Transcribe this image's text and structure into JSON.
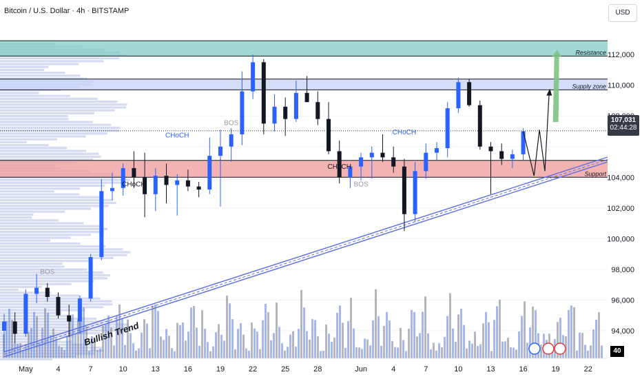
{
  "header": {
    "title": "Bitcoin / U.S. Dollar · 4h · BITSTAMP",
    "currency": "USD"
  },
  "last_price": {
    "price": "107,031",
    "countdown": "02:44:28"
  },
  "overlay_logo": "40",
  "colors": {
    "bull": "#2962ff",
    "bear": "#131722",
    "resistance": "#80cbc4",
    "supply": "#c5d3f5",
    "support": "#ef9a9a",
    "trendline": "#5b6ee1",
    "projection_arrow": "#7dc383",
    "volume": "#5d7fd8",
    "volume_dark": "#787b86"
  },
  "chart_data": {
    "type": "candlestick",
    "x_tick_labels": [
      "May",
      "4",
      "7",
      "10",
      "13",
      "16",
      "19",
      "22",
      "25",
      "28",
      "Jun",
      "4",
      "7",
      "10",
      "13",
      "16",
      "19",
      "22"
    ],
    "y_ticks": [
      94000,
      96000,
      98000,
      100000,
      102000,
      104000,
      106000,
      108000,
      110000,
      112000
    ],
    "y_tick_labels": [
      "94,000",
      "96,000",
      "98,000",
      "100,000",
      "102,000",
      "104,000",
      "",
      "108,000",
      "110,000",
      "112,000"
    ],
    "ylim": [
      92200,
      113400
    ],
    "zones": [
      {
        "name": "resistance",
        "label": "Resistance",
        "from": 111900,
        "to": 112900
      },
      {
        "name": "supply",
        "label": "Supply zone",
        "from": 109700,
        "to": 110400
      },
      {
        "name": "support",
        "label": "Support",
        "from": 104000,
        "to": 105100
      }
    ],
    "annotations": [
      {
        "text": "BOS",
        "date": "May 3",
        "price": 97700,
        "color": "#9598a1"
      },
      {
        "text": "CHoCH",
        "date": "May 11",
        "price": 103400,
        "color": "#131722"
      },
      {
        "text": "CHoCH",
        "date": "May 15",
        "price": 106600,
        "color": "#2962ff"
      },
      {
        "text": "BOS",
        "date": "May 20",
        "price": 107400,
        "color": "#9598a1"
      },
      {
        "text": "CHoCH",
        "date": "May 30",
        "price": 104550,
        "color": "#131722"
      },
      {
        "text": "BOS",
        "date": "Jun 1",
        "price": 103400,
        "color": "#9598a1"
      },
      {
        "text": "CHoCH",
        "date": "Jun 5",
        "price": 106800,
        "color": "#2962ff"
      },
      {
        "text": "Bullish Trend",
        "date": "May 9",
        "price": 93600,
        "color": "#131722"
      }
    ],
    "dotted_last_price": 107031,
    "trendlines": [
      {
        "name": "bullish-trend",
        "from": {
          "date": "Apr 29",
          "price": 92300
        },
        "to": {
          "date": "Jun 22",
          "price": 105000
        }
      }
    ],
    "candles": [
      {
        "d": "Apr 29",
        "o": 94000,
        "h": 95100,
        "l": 92600,
        "c": 94600
      },
      {
        "d": "Apr 30",
        "o": 94600,
        "h": 95200,
        "l": 93200,
        "c": 93800
      },
      {
        "d": "May 1",
        "o": 93800,
        "h": 96700,
        "l": 93600,
        "c": 96400
      },
      {
        "d": "May 2",
        "o": 96400,
        "h": 97700,
        "l": 95800,
        "c": 96800
      },
      {
        "d": "May 3",
        "o": 96800,
        "h": 97100,
        "l": 95900,
        "c": 96200
      },
      {
        "d": "May 4",
        "o": 96200,
        "h": 96500,
        "l": 94800,
        "c": 95000
      },
      {
        "d": "May 5",
        "o": 95000,
        "h": 95700,
        "l": 93600,
        "c": 94600
      },
      {
        "d": "May 6",
        "o": 94600,
        "h": 96300,
        "l": 93800,
        "c": 96100
      },
      {
        "d": "May 7",
        "o": 96100,
        "h": 99000,
        "l": 95900,
        "c": 98800
      },
      {
        "d": "May 8",
        "o": 98800,
        "h": 103900,
        "l": 98600,
        "c": 103100
      },
      {
        "d": "May 9",
        "o": 103100,
        "h": 104300,
        "l": 102500,
        "c": 103300
      },
      {
        "d": "May 10",
        "o": 103300,
        "h": 104900,
        "l": 102800,
        "c": 104600
      },
      {
        "d": "May 11",
        "o": 104600,
        "h": 105700,
        "l": 103300,
        "c": 104000
      },
      {
        "d": "May 12",
        "o": 104000,
        "h": 105600,
        "l": 101400,
        "c": 102900
      },
      {
        "d": "May 13",
        "o": 102900,
        "h": 104600,
        "l": 101800,
        "c": 104100
      },
      {
        "d": "May 14",
        "o": 104100,
        "h": 104900,
        "l": 102300,
        "c": 103500
      },
      {
        "d": "May 15",
        "o": 103500,
        "h": 104200,
        "l": 101500,
        "c": 103800
      },
      {
        "d": "May 16",
        "o": 103800,
        "h": 104500,
        "l": 103100,
        "c": 103400
      },
      {
        "d": "May 17",
        "o": 103400,
        "h": 103700,
        "l": 102700,
        "c": 103200
      },
      {
        "d": "May 18",
        "o": 103200,
        "h": 106600,
        "l": 102900,
        "c": 105400
      },
      {
        "d": "May 19",
        "o": 105400,
        "h": 107100,
        "l": 102100,
        "c": 106000
      },
      {
        "d": "May 20",
        "o": 106000,
        "h": 107200,
        "l": 105000,
        "c": 106800
      },
      {
        "d": "May 21",
        "o": 106800,
        "h": 110900,
        "l": 106100,
        "c": 109600
      },
      {
        "d": "May 22",
        "o": 109600,
        "h": 112000,
        "l": 109100,
        "c": 111500
      },
      {
        "d": "May 23",
        "o": 111500,
        "h": 111700,
        "l": 106800,
        "c": 107500
      },
      {
        "d": "May 24",
        "o": 107500,
        "h": 109400,
        "l": 107000,
        "c": 108600
      },
      {
        "d": "May 25",
        "o": 108600,
        "h": 109200,
        "l": 106700,
        "c": 107800
      },
      {
        "d": "May 26",
        "o": 107800,
        "h": 110300,
        "l": 107600,
        "c": 109500
      },
      {
        "d": "May 27",
        "o": 109500,
        "h": 110600,
        "l": 108900,
        "c": 108900
      },
      {
        "d": "May 28",
        "o": 108900,
        "h": 109600,
        "l": 107400,
        "c": 107800
      },
      {
        "d": "May 29",
        "o": 107800,
        "h": 108900,
        "l": 105500,
        "c": 105700
      },
      {
        "d": "May 30",
        "o": 105700,
        "h": 106400,
        "l": 103600,
        "c": 104000
      },
      {
        "d": "May 31",
        "o": 104000,
        "h": 104800,
        "l": 103300,
        "c": 104700
      },
      {
        "d": "Jun 1",
        "o": 104700,
        "h": 105600,
        "l": 103800,
        "c": 105300
      },
      {
        "d": "Jun 2",
        "o": 105300,
        "h": 106000,
        "l": 103900,
        "c": 105600
      },
      {
        "d": "Jun 3",
        "o": 105600,
        "h": 106800,
        "l": 105000,
        "c": 105300
      },
      {
        "d": "Jun 4",
        "o": 105300,
        "h": 106000,
        "l": 104300,
        "c": 104700
      },
      {
        "d": "Jun 5",
        "o": 104700,
        "h": 105200,
        "l": 100500,
        "c": 101600
      },
      {
        "d": "Jun 6",
        "o": 101600,
        "h": 105000,
        "l": 101100,
        "c": 104400
      },
      {
        "d": "Jun 7",
        "o": 104400,
        "h": 106200,
        "l": 103900,
        "c": 105600
      },
      {
        "d": "Jun 8",
        "o": 105600,
        "h": 106300,
        "l": 105100,
        "c": 105900
      },
      {
        "d": "Jun 9",
        "o": 105900,
        "h": 108900,
        "l": 105300,
        "c": 108500
      },
      {
        "d": "Jun 10",
        "o": 108500,
        "h": 110500,
        "l": 108200,
        "c": 110200
      },
      {
        "d": "Jun 11",
        "o": 110200,
        "h": 110400,
        "l": 108600,
        "c": 108700
      },
      {
        "d": "Jun 12",
        "o": 108700,
        "h": 109000,
        "l": 105800,
        "c": 106000
      },
      {
        "d": "Jun 13",
        "o": 106000,
        "h": 106300,
        "l": 102900,
        "c": 105700
      },
      {
        "d": "Jun 14",
        "o": 105700,
        "h": 106200,
        "l": 104800,
        "c": 105200
      },
      {
        "d": "Jun 15",
        "o": 105200,
        "h": 105800,
        "l": 104600,
        "c": 105500
      },
      {
        "d": "Jun 16",
        "o": 105500,
        "h": 107200,
        "l": 105100,
        "c": 107000
      }
    ],
    "projection_path": [
      {
        "date": "Jun 16",
        "price": 107000
      },
      {
        "date": "Jun 17",
        "price": 104100
      },
      {
        "date": "Jun 17.5",
        "price": 107100
      },
      {
        "date": "Jun 18",
        "price": 104400
      },
      {
        "date": "Jun 18.4",
        "price": 109600
      }
    ],
    "projection_target": {
      "date": "Jun 19",
      "from_price": 107600,
      "to_price": 112300
    }
  }
}
